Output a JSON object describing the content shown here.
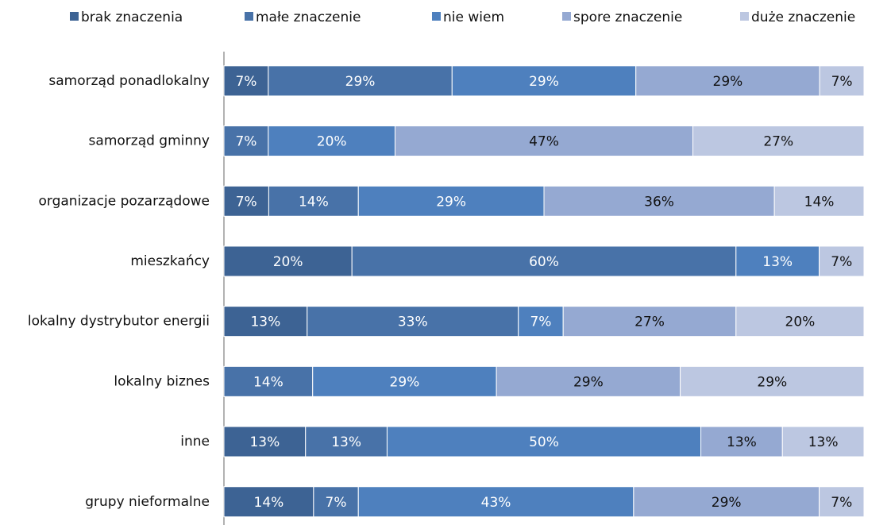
{
  "chart_data": {
    "type": "stacked-bar-horizontal",
    "categories": [
      "samorząd ponadlokalny",
      "samorząd gminny",
      "organizacje pozarządowe",
      "mieszkańcy",
      "lokalny dystrybutor energii",
      "lokalny biznes",
      "inne",
      "grupy nieformalne"
    ],
    "series": [
      {
        "name": "brak znaczenia",
        "color": "#3d6394",
        "label_color": "#ffffff",
        "values": [
          7,
          null,
          7,
          20,
          13,
          null,
          13,
          14
        ],
        "value_labels": [
          "7%",
          null,
          "7%",
          "20%",
          "13%",
          null,
          "13%",
          "14%"
        ]
      },
      {
        "name": "małe znaczenie",
        "color": "#4872a8",
        "label_color": "#ffffff",
        "values": [
          29,
          7,
          14,
          60,
          33,
          14,
          13,
          7
        ],
        "value_labels": [
          "29%",
          "7%",
          "14%",
          "60%",
          "33%",
          "14%",
          "13%",
          "7%"
        ]
      },
      {
        "name": "nie wiem",
        "color": "#4e80be",
        "label_color": "#ffffff",
        "values": [
          29,
          20,
          29,
          13,
          7,
          29,
          50,
          43
        ],
        "value_labels": [
          "29%",
          "20%",
          "29%",
          "13%",
          "7%",
          "29%",
          "50%",
          "43%"
        ]
      },
      {
        "name": "spore znaczenie",
        "color": "#95a9d2",
        "label_color": "#111111",
        "values": [
          29,
          47,
          36,
          null,
          27,
          29,
          13,
          29
        ],
        "value_labels": [
          "29%",
          "47%",
          "36%",
          null,
          "27%",
          "29%",
          "13%",
          "29%"
        ]
      },
      {
        "name": "duże znaczenie",
        "color": "#bcc7e1",
        "label_color": "#111111",
        "values": [
          7,
          27,
          14,
          7,
          20,
          29,
          13,
          7
        ],
        "value_labels": [
          "7%",
          "27%",
          "14%",
          "7%",
          "20%",
          "29%",
          "13%",
          "7%"
        ]
      }
    ]
  }
}
